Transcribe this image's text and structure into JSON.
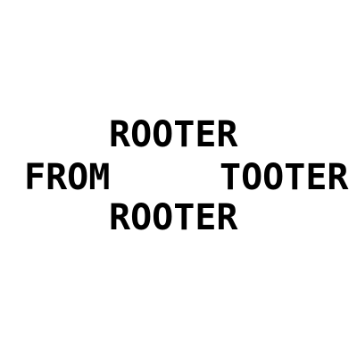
{
  "words": {
    "top": "ROOTER",
    "left": "FROM",
    "right": "TOOTER",
    "bottom": "ROOTER"
  },
  "colors": {
    "text": "#000000",
    "background": "#ffffff"
  }
}
